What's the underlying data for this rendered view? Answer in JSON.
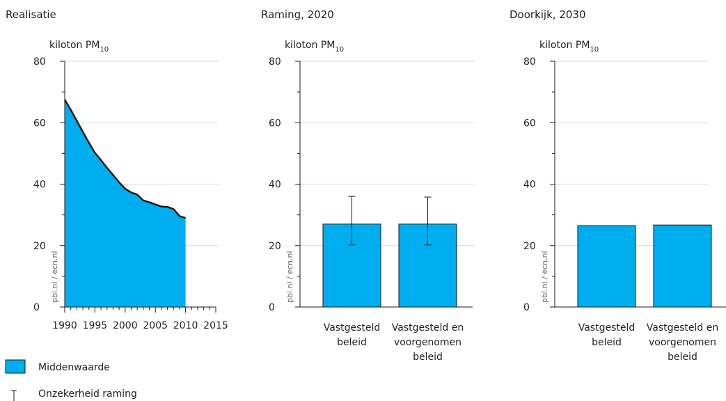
{
  "chart_data": [
    {
      "type": "area",
      "panel_title": "Realisatie",
      "ylabel": "kiloton PM",
      "ylabel_sub": "10",
      "ylim": [
        0,
        80
      ],
      "yticks": [
        "0",
        "20",
        "40",
        "60",
        "80"
      ],
      "xlim": [
        1990,
        2015
      ],
      "xticks": [
        "1990",
        "1995",
        "2000",
        "2005",
        "2010",
        "2015"
      ],
      "x": [
        1990,
        1991,
        1992,
        1993,
        1994,
        1995,
        1996,
        1997,
        1998,
        1999,
        2000,
        2001,
        2002,
        2003,
        2004,
        2005,
        2006,
        2007,
        2008,
        2009,
        2010
      ],
      "values": [
        67.5,
        64.2,
        60.6,
        57.0,
        53.5,
        50.2,
        47.8,
        45.3,
        43.0,
        40.6,
        38.5,
        37.3,
        36.6,
        34.7,
        34.1,
        33.4,
        32.7,
        32.6,
        31.9,
        29.6,
        29.0
      ],
      "watermark": "pbl.nl / ecn.nl"
    },
    {
      "type": "bar",
      "panel_title": "Raming, 2020",
      "ylabel": "kiloton PM",
      "ylabel_sub": "10",
      "ylim": [
        0,
        80
      ],
      "yticks": [
        "0",
        "20",
        "40",
        "60",
        "80"
      ],
      "categories": [
        [
          "Vastgesteld",
          "beleid"
        ],
        [
          "Vastgesteld en",
          "voorgenomen",
          "beleid"
        ]
      ],
      "values": [
        27.0,
        27.0
      ],
      "error_low": [
        20.2,
        20.2
      ],
      "error_high": [
        36.0,
        35.8
      ],
      "watermark": "pbl.nl / ecn.nl"
    },
    {
      "type": "bar",
      "panel_title": "Doorkijk, 2030",
      "ylabel": "kiloton PM",
      "ylabel_sub": "10",
      "ylim": [
        0,
        80
      ],
      "yticks": [
        "0",
        "20",
        "40",
        "60",
        "80"
      ],
      "categories": [
        [
          "Vastgesteld",
          "beleid"
        ],
        [
          "Vastgesteld en",
          "voorgenomen",
          "beleid"
        ]
      ],
      "values": [
        26.5,
        26.7
      ],
      "watermark": "pbl.nl / ecn.nl"
    }
  ],
  "legend": [
    {
      "label": "Middenwaarde",
      "kind": "swatch"
    },
    {
      "label": "Onzekerheid raming",
      "kind": "errorbar"
    }
  ],
  "colors": {
    "fill": "#00aeef",
    "line": "#1a1a1a",
    "grid": "#cccccc",
    "axis": "#1a1a1a"
  }
}
